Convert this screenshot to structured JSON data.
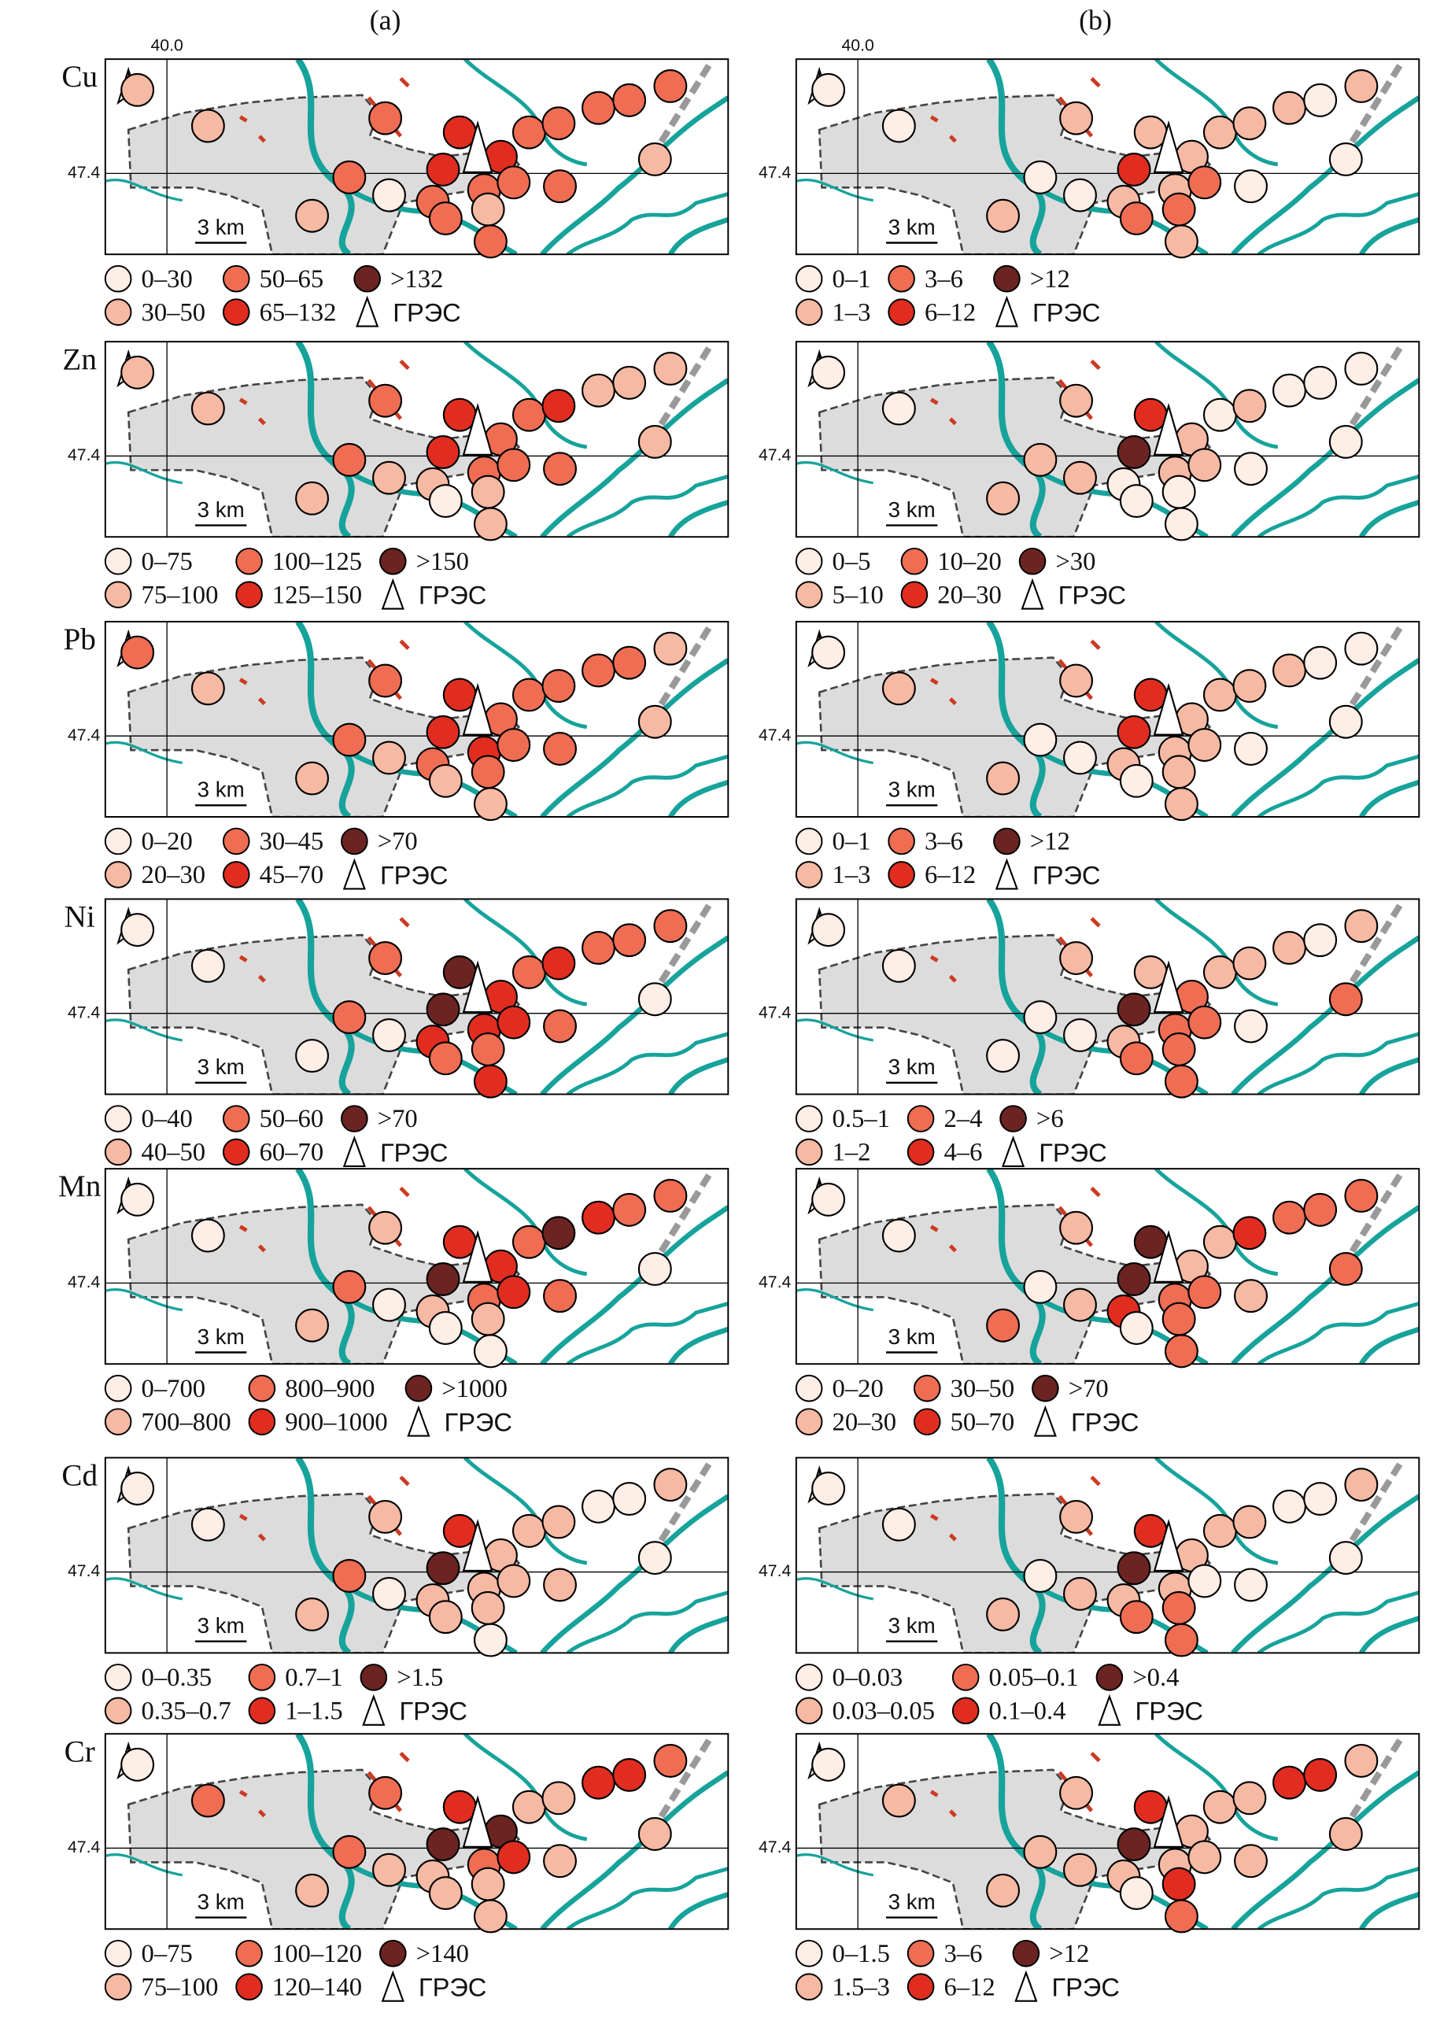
{
  "column_labels": [
    "(a)",
    "(b)"
  ],
  "lon_label": "40.0",
  "lat_label": "47.4",
  "scale_label": "3 km",
  "plant_label": "ГРЭС",
  "colors": [
    "#fdeee6",
    "#f6b9a3",
    "#ee6d53",
    "#e02d20",
    "#6b2422"
  ],
  "panels": [
    {
      "element": "Cu",
      "columns": [
        {
          "legend": [
            "0–30",
            "30–50",
            "50–65",
            "65–132",
            ">132"
          ],
          "classes": [
            1,
            1,
            2,
            3,
            3,
            3,
            2,
            0,
            2,
            2,
            2,
            1,
            2,
            1,
            2,
            2,
            2,
            2,
            2,
            2,
            2,
            1
          ]
        },
        {
          "legend": [
            "0–1",
            "1–3",
            "3–6",
            "6–12",
            ">12"
          ],
          "classes": [
            0,
            0,
            1,
            1,
            1,
            3,
            0,
            0,
            1,
            1,
            2,
            2,
            2,
            1,
            1,
            0,
            1,
            1,
            1,
            0,
            1,
            0
          ]
        }
      ]
    },
    {
      "element": "Zn",
      "columns": [
        {
          "legend": [
            "0–75",
            "75–100",
            "100–125",
            "125–150",
            ">150"
          ],
          "classes": [
            1,
            1,
            2,
            3,
            2,
            3,
            2,
            1,
            1,
            2,
            2,
            1,
            0,
            1,
            1,
            2,
            2,
            3,
            1,
            1,
            1,
            1
          ]
        },
        {
          "legend": [
            "0–5",
            "5–10",
            "10–20",
            "20–30",
            ">30"
          ],
          "classes": [
            0,
            0,
            1,
            3,
            1,
            4,
            1,
            1,
            0,
            1,
            1,
            0,
            0,
            1,
            0,
            0,
            0,
            1,
            0,
            0,
            0,
            0
          ]
        }
      ]
    },
    {
      "element": "Pb",
      "columns": [
        {
          "legend": [
            "0–20",
            "20–30",
            "30–45",
            "45–70",
            ">70"
          ],
          "classes": [
            2,
            1,
            2,
            3,
            2,
            3,
            2,
            1,
            2,
            3,
            2,
            2,
            1,
            1,
            1,
            2,
            2,
            2,
            2,
            2,
            1,
            1
          ]
        },
        {
          "legend": [
            "0–1",
            "1–3",
            "3–6",
            "6–12",
            ">12"
          ],
          "classes": [
            0,
            1,
            1,
            3,
            1,
            3,
            0,
            0,
            1,
            1,
            1,
            1,
            0,
            1,
            1,
            0,
            1,
            1,
            1,
            0,
            0,
            0
          ]
        }
      ]
    },
    {
      "element": "Ni",
      "columns": [
        {
          "legend": [
            "0–40",
            "40–50",
            "50–60",
            "60–70",
            ">70"
          ],
          "classes": [
            0,
            0,
            2,
            4,
            3,
            4,
            2,
            0,
            3,
            3,
            3,
            2,
            2,
            0,
            3,
            2,
            2,
            3,
            2,
            2,
            2,
            0
          ]
        },
        {
          "legend": [
            "0.5–1",
            "1–2",
            "2–4",
            "4–6",
            ">6"
          ],
          "classes": [
            0,
            0,
            1,
            1,
            2,
            4,
            0,
            0,
            1,
            2,
            2,
            2,
            2,
            0,
            2,
            0,
            1,
            1,
            1,
            0,
            1,
            2
          ]
        }
      ]
    },
    {
      "element": "Mn",
      "columns": [
        {
          "legend": [
            "0–700",
            "700–800",
            "800–900",
            "900–1000",
            ">1000"
          ],
          "classes": [
            0,
            0,
            1,
            3,
            3,
            4,
            2,
            0,
            1,
            2,
            3,
            1,
            0,
            1,
            0,
            2,
            2,
            4,
            3,
            2,
            2,
            0
          ]
        },
        {
          "legend": [
            "0–20",
            "20–30",
            "30–50",
            "50–70",
            ">70"
          ],
          "classes": [
            0,
            0,
            1,
            4,
            1,
            4,
            0,
            1,
            3,
            2,
            2,
            2,
            0,
            2,
            2,
            1,
            1,
            3,
            2,
            2,
            2,
            2
          ]
        }
      ]
    },
    {
      "element": "Cd",
      "columns": [
        {
          "legend": [
            "0–0.35",
            "0.35–0.7",
            "0.7–1",
            "1–1.5",
            ">1.5"
          ],
          "classes": [
            0,
            0,
            1,
            3,
            1,
            4,
            2,
            0,
            1,
            1,
            1,
            1,
            1,
            1,
            0,
            1,
            1,
            1,
            0,
            0,
            1,
            0
          ]
        },
        {
          "legend": [
            "0–0.03",
            "0.03–0.05",
            "0.05–0.1",
            "0.1–0.4",
            ">0.4"
          ],
          "classes": [
            0,
            0,
            1,
            3,
            1,
            4,
            0,
            1,
            1,
            1,
            0,
            2,
            2,
            1,
            2,
            0,
            1,
            1,
            0,
            0,
            1,
            0
          ]
        }
      ]
    },
    {
      "element": "Cr",
      "columns": [
        {
          "legend": [
            "0–75",
            "75–100",
            "100–120",
            "120–140",
            ">140"
          ],
          "classes": [
            0,
            2,
            2,
            3,
            4,
            4,
            2,
            1,
            1,
            2,
            3,
            1,
            1,
            1,
            1,
            1,
            1,
            1,
            3,
            3,
            2,
            1
          ]
        },
        {
          "legend": [
            "0–1.5",
            "1.5–3",
            "3–6",
            "6–12",
            ">12"
          ],
          "classes": [
            0,
            1,
            1,
            3,
            1,
            4,
            1,
            1,
            1,
            1,
            1,
            3,
            0,
            1,
            2,
            1,
            1,
            1,
            3,
            3,
            1,
            1
          ]
        }
      ]
    }
  ]
}
